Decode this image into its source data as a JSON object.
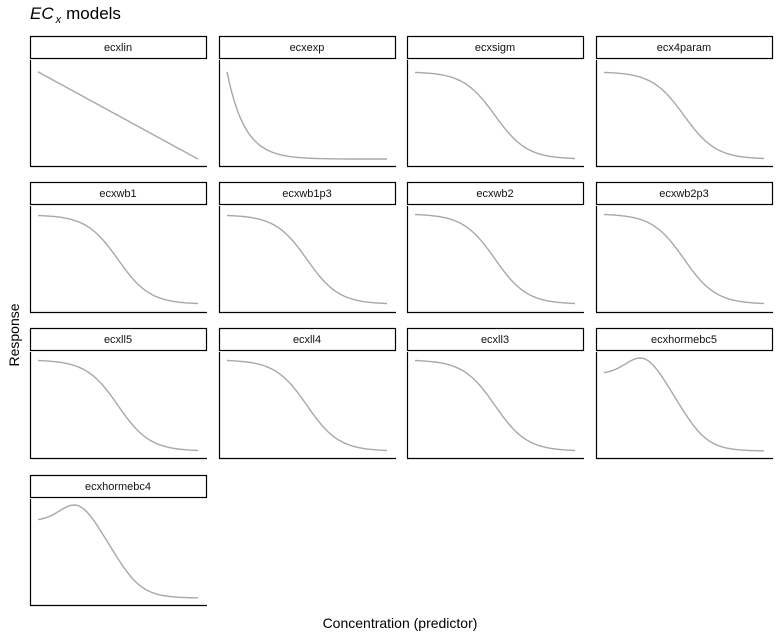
{
  "title": {
    "main": "EC",
    "subscript": "x",
    "rest": "models"
  },
  "chart_data": {
    "type": "line",
    "title": "EC x models",
    "xlabel": "Concentration (predictor)",
    "ylabel": "Response",
    "grid": false,
    "legend": "none",
    "line_color": "#a8a8a8",
    "panels": [
      {
        "name": "ecxlin",
        "shape": "linear",
        "y_start": 0.92,
        "y_end": 0.03
      },
      {
        "name": "ecxexp",
        "shape": "exponential",
        "y_start": 0.92,
        "y_end": 0.03
      },
      {
        "name": "ecxsigm",
        "shape": "sigmoidal",
        "y_start": 0.92,
        "y_end": 0.03
      },
      {
        "name": "ecx4param",
        "shape": "sigmoidal",
        "y_start": 0.92,
        "y_end": 0.03
      },
      {
        "name": "ecxwb1",
        "shape": "sigmoidal",
        "y_start": 0.95,
        "y_end": 0.04
      },
      {
        "name": "ecxwb1p3",
        "shape": "sigmoidal",
        "y_start": 0.95,
        "y_end": 0.04
      },
      {
        "name": "ecxwb2",
        "shape": "sigmoidal",
        "y_start": 0.96,
        "y_end": 0.04
      },
      {
        "name": "ecxwb2p3",
        "shape": "sigmoidal",
        "y_start": 0.96,
        "y_end": 0.04
      },
      {
        "name": "ecxll5",
        "shape": "sigmoidal",
        "y_start": 0.96,
        "y_end": 0.03
      },
      {
        "name": "ecxll4",
        "shape": "sigmoidal",
        "y_start": 0.96,
        "y_end": 0.03
      },
      {
        "name": "ecxll3",
        "shape": "sigmoidal",
        "y_start": 0.96,
        "y_end": 0.03
      },
      {
        "name": "ecxhormebc5",
        "shape": "hormesis",
        "y_start": 0.82,
        "y_end": 0.03,
        "y_peak": 0.97
      },
      {
        "name": "ecxhormebc4",
        "shape": "hormesis",
        "y_start": 0.82,
        "y_end": 0.03,
        "y_peak": 0.97
      }
    ]
  }
}
